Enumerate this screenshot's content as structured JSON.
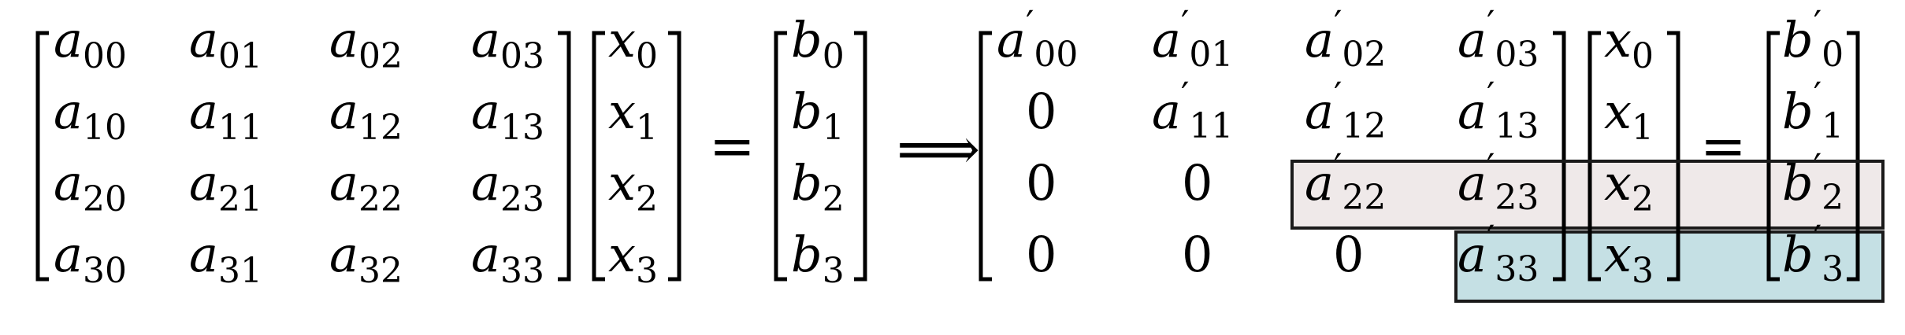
{
  "equation": {
    "lhs_matrix": {
      "rows": [
        [
          {
            "base": "a",
            "sub": "00",
            "prime": false
          },
          {
            "base": "a",
            "sub": "01",
            "prime": false
          },
          {
            "base": "a",
            "sub": "02",
            "prime": false
          },
          {
            "base": "a",
            "sub": "03",
            "prime": false
          }
        ],
        [
          {
            "base": "a",
            "sub": "10",
            "prime": false
          },
          {
            "base": "a",
            "sub": "11",
            "prime": false
          },
          {
            "base": "a",
            "sub": "12",
            "prime": false
          },
          {
            "base": "a",
            "sub": "13",
            "prime": false
          }
        ],
        [
          {
            "base": "a",
            "sub": "20",
            "prime": false
          },
          {
            "base": "a",
            "sub": "21",
            "prime": false
          },
          {
            "base": "a",
            "sub": "22",
            "prime": false
          },
          {
            "base": "a",
            "sub": "23",
            "prime": false
          }
        ],
        [
          {
            "base": "a",
            "sub": "30",
            "prime": false
          },
          {
            "base": "a",
            "sub": "31",
            "prime": false
          },
          {
            "base": "a",
            "sub": "32",
            "prime": false
          },
          {
            "base": "a",
            "sub": "33",
            "prime": false
          }
        ]
      ]
    },
    "x_vector": [
      {
        "base": "x",
        "sub": "0",
        "prime": false
      },
      {
        "base": "x",
        "sub": "1",
        "prime": false
      },
      {
        "base": "x",
        "sub": "2",
        "prime": false
      },
      {
        "base": "x",
        "sub": "3",
        "prime": false
      }
    ],
    "equals_sign": "=",
    "b_vector": [
      {
        "base": "b",
        "sub": "0",
        "prime": false
      },
      {
        "base": "b",
        "sub": "1",
        "prime": false
      },
      {
        "base": "b",
        "sub": "2",
        "prime": false
      },
      {
        "base": "b",
        "sub": "3",
        "prime": false
      }
    ],
    "implies_sign": "⟹",
    "rhs_matrix": {
      "rows": [
        [
          {
            "base": "a",
            "sub": "00",
            "prime": true
          },
          {
            "base": "a",
            "sub": "01",
            "prime": true
          },
          {
            "base": "a",
            "sub": "02",
            "prime": true
          },
          {
            "base": "a",
            "sub": "03",
            "prime": true
          }
        ],
        [
          {
            "text": "0"
          },
          {
            "base": "a",
            "sub": "11",
            "prime": true
          },
          {
            "base": "a",
            "sub": "12",
            "prime": true
          },
          {
            "base": "a",
            "sub": "13",
            "prime": true
          }
        ],
        [
          {
            "text": "0"
          },
          {
            "text": "0"
          },
          {
            "base": "a",
            "sub": "22",
            "prime": true
          },
          {
            "base": "a",
            "sub": "23",
            "prime": true
          }
        ],
        [
          {
            "text": "0"
          },
          {
            "text": "0"
          },
          {
            "text": "0"
          },
          {
            "base": "a",
            "sub": "33",
            "prime": true
          }
        ]
      ]
    },
    "x_vector_2": [
      {
        "base": "x",
        "sub": "0",
        "prime": false
      },
      {
        "base": "x",
        "sub": "1",
        "prime": false
      },
      {
        "base": "x",
        "sub": "2",
        "prime": false
      },
      {
        "base": "x",
        "sub": "3",
        "prime": false
      }
    ],
    "equals_sign_2": "=",
    "b_prime_vector": [
      {
        "base": "b",
        "sub": "0",
        "prime": true
      },
      {
        "base": "b",
        "sub": "1",
        "prime": true
      },
      {
        "base": "b",
        "sub": "2",
        "prime": true
      },
      {
        "base": "b",
        "sub": "3",
        "prime": true
      }
    ],
    "highlights": {
      "row2_color": "#efe9e9",
      "row3_color": "#c5e0e4",
      "border_color": "#1a1a1a"
    }
  }
}
